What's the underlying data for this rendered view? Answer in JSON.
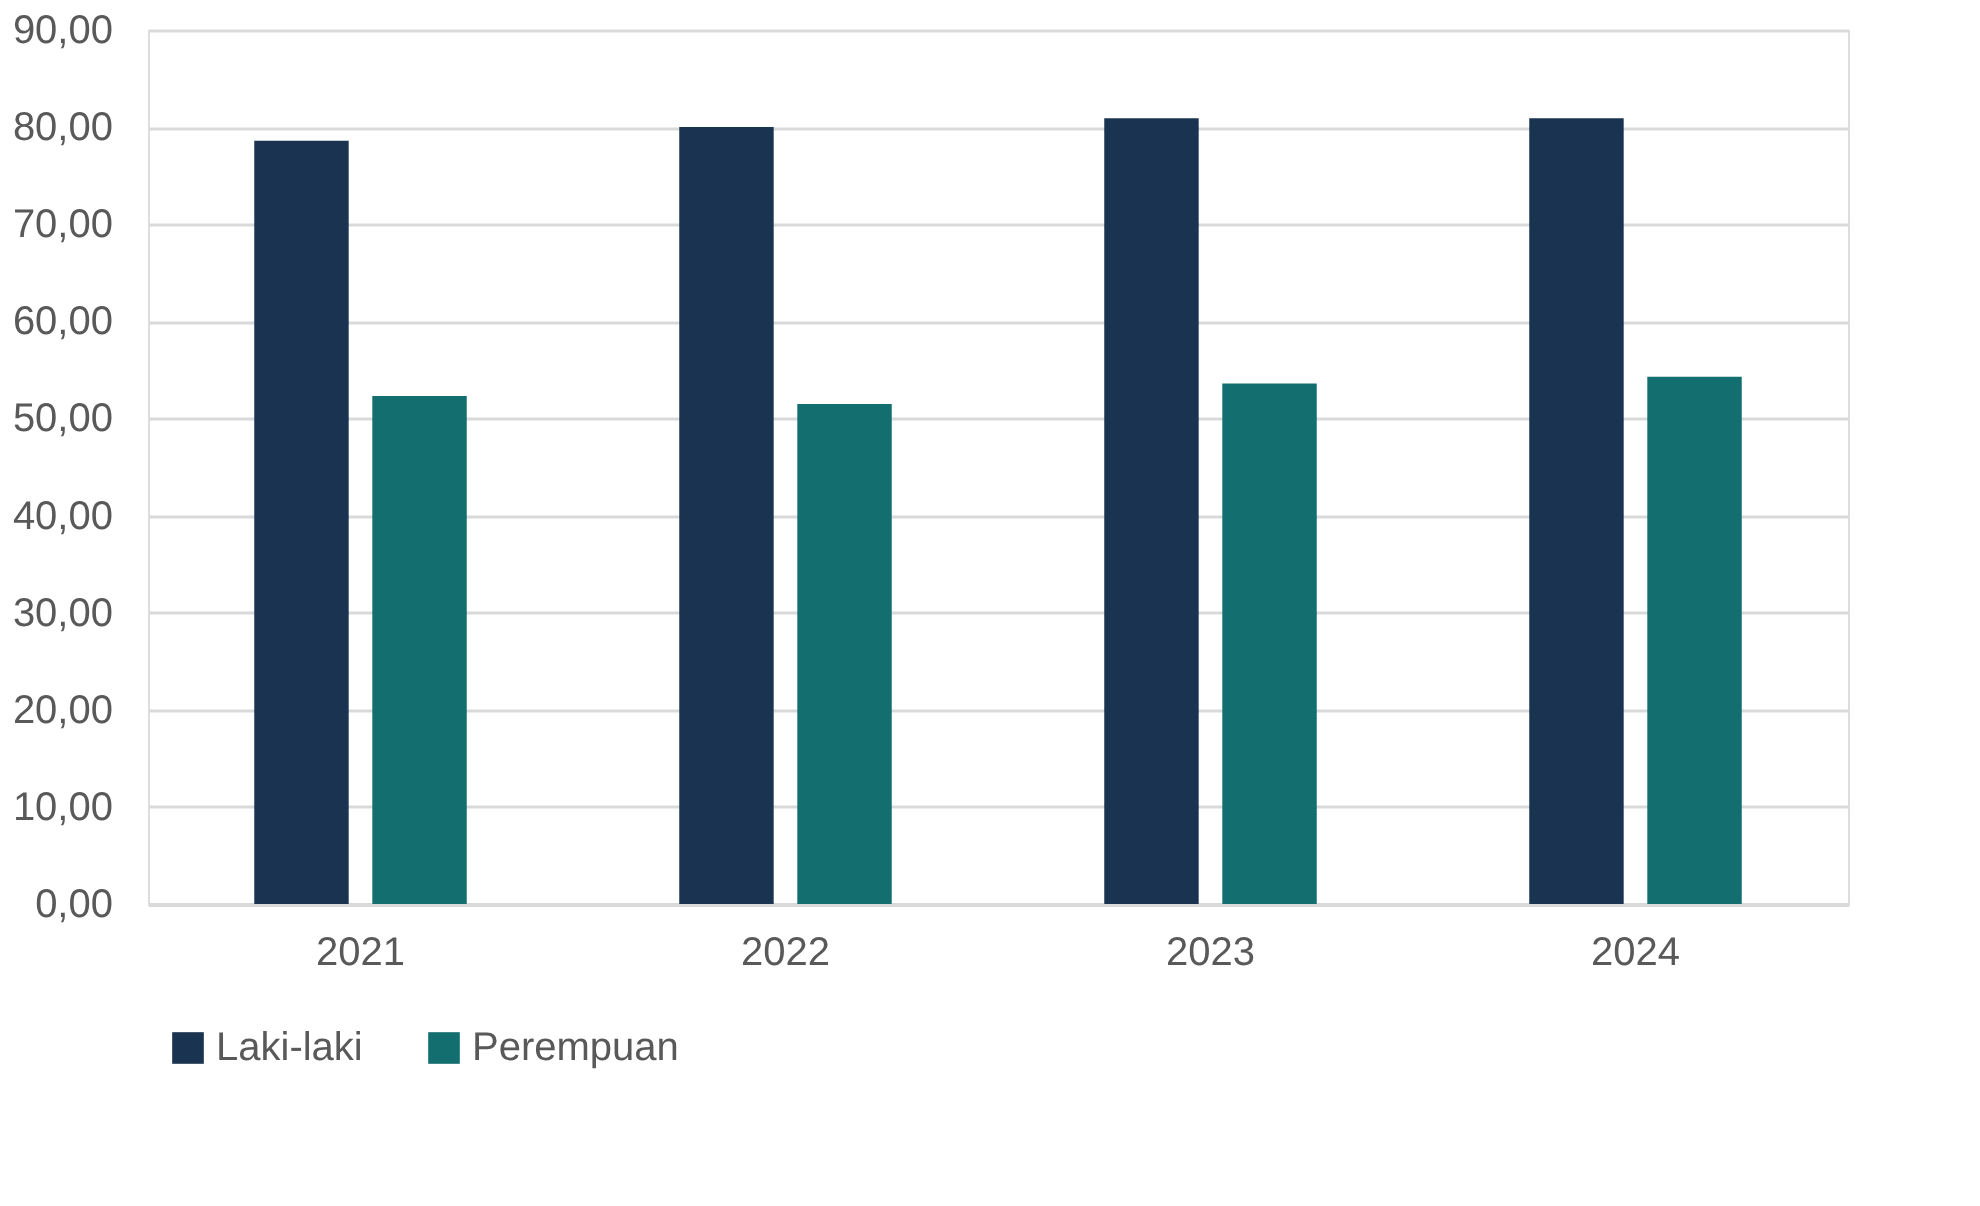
{
  "chart_data": {
    "type": "bar",
    "categories": [
      "2021",
      "2022",
      "2023",
      "2024"
    ],
    "series": [
      {
        "name": "Laki-laki",
        "color": "#193350",
        "values": [
          78.6,
          80.0,
          80.9,
          80.9
        ]
      },
      {
        "name": "Perempuan",
        "color": "#136e70",
        "values": [
          52.3,
          51.5,
          53.6,
          54.3
        ]
      }
    ],
    "ylim": [
      0,
      90
    ],
    "yticks": [
      {
        "value": 0,
        "label": "0,00"
      },
      {
        "value": 10,
        "label": "10,00"
      },
      {
        "value": 20,
        "label": "20,00"
      },
      {
        "value": 30,
        "label": "30,00"
      },
      {
        "value": 40,
        "label": "40,00"
      },
      {
        "value": 50,
        "label": "50,00"
      },
      {
        "value": 60,
        "label": "60,00"
      },
      {
        "value": 70,
        "label": "70,00"
      },
      {
        "value": 80,
        "label": "80,00"
      },
      {
        "value": 90,
        "label": "90,00"
      }
    ],
    "grid": "y",
    "legend": "bottom"
  }
}
